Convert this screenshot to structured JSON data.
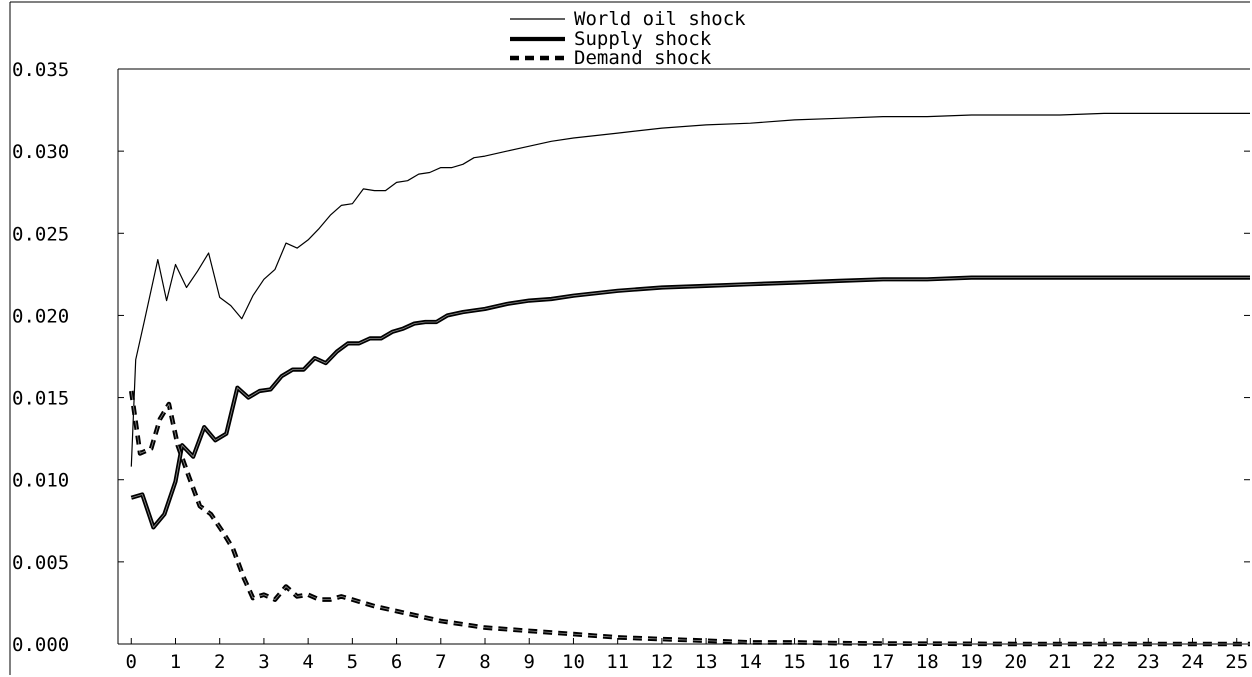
{
  "chart_data": {
    "type": "line",
    "title": "",
    "xlabel": "",
    "ylabel": "",
    "xlim": [
      -0.3,
      25.3
    ],
    "ylim": [
      0.0,
      0.035
    ],
    "x_ticks": [
      0,
      1,
      2,
      3,
      4,
      5,
      6,
      7,
      8,
      9,
      10,
      11,
      12,
      13,
      14,
      15,
      16,
      17,
      18,
      19,
      20,
      21,
      22,
      23,
      24,
      25
    ],
    "x_tick_labels": [
      "0",
      "1",
      "2",
      "3",
      "4",
      "5",
      "6",
      "7",
      "8",
      "9",
      "10",
      "11",
      "12",
      "13",
      "14",
      "15",
      "16",
      "17",
      "18",
      "19",
      "20",
      "21",
      "22",
      "23",
      "24",
      "25"
    ],
    "y_ticks": [
      0.0,
      0.005,
      0.01,
      0.015,
      0.02,
      0.025,
      0.03,
      0.035
    ],
    "y_tick_labels": [
      "0.000",
      "0.005",
      "0.010",
      "0.015",
      "0.020",
      "0.025",
      "0.030",
      "0.035"
    ],
    "grid": false,
    "legend_position": "top-center",
    "series": [
      {
        "name": "World oil shock",
        "style": "thin-solid",
        "color": "#000000",
        "points": [
          [
            0,
            0.0108
          ],
          [
            0.1,
            0.0173
          ],
          [
            0.3,
            0.0197
          ],
          [
            0.6,
            0.0234
          ],
          [
            0.8,
            0.0209
          ],
          [
            1.0,
            0.0231
          ],
          [
            1.25,
            0.0217
          ],
          [
            1.5,
            0.0227
          ],
          [
            1.75,
            0.0238
          ],
          [
            2.0,
            0.0211
          ],
          [
            2.25,
            0.0206
          ],
          [
            2.5,
            0.0198
          ],
          [
            2.75,
            0.0212
          ],
          [
            3.0,
            0.0222
          ],
          [
            3.25,
            0.0228
          ],
          [
            3.5,
            0.0244
          ],
          [
            3.75,
            0.0241
          ],
          [
            4.0,
            0.0246
          ],
          [
            4.25,
            0.0253
          ],
          [
            4.5,
            0.0261
          ],
          [
            4.75,
            0.0267
          ],
          [
            5.0,
            0.0268
          ],
          [
            5.25,
            0.0277
          ],
          [
            5.5,
            0.0276
          ],
          [
            5.75,
            0.0276
          ],
          [
            6.0,
            0.0281
          ],
          [
            6.25,
            0.0282
          ],
          [
            6.5,
            0.0286
          ],
          [
            6.75,
            0.0287
          ],
          [
            7.0,
            0.029
          ],
          [
            7.25,
            0.029
          ],
          [
            7.5,
            0.0292
          ],
          [
            7.75,
            0.0296
          ],
          [
            8.0,
            0.0297
          ],
          [
            8.5,
            0.03
          ],
          [
            9.0,
            0.0303
          ],
          [
            9.5,
            0.0306
          ],
          [
            10.0,
            0.0308
          ],
          [
            11.0,
            0.0311
          ],
          [
            12.0,
            0.0314
          ],
          [
            13.0,
            0.0316
          ],
          [
            14.0,
            0.0317
          ],
          [
            15.0,
            0.0319
          ],
          [
            16.0,
            0.032
          ],
          [
            17.0,
            0.0321
          ],
          [
            18.0,
            0.0321
          ],
          [
            19.0,
            0.0322
          ],
          [
            20.0,
            0.0322
          ],
          [
            21.0,
            0.0322
          ],
          [
            22.0,
            0.0323
          ],
          [
            23.0,
            0.0323
          ],
          [
            24.0,
            0.0323
          ],
          [
            25.3,
            0.0323
          ]
        ]
      },
      {
        "name": "Supply shock",
        "style": "thick-solid",
        "color": "#000000",
        "points": [
          [
            0,
            0.0089
          ],
          [
            0.25,
            0.0091
          ],
          [
            0.5,
            0.0071
          ],
          [
            0.75,
            0.0079
          ],
          [
            1.0,
            0.0099
          ],
          [
            1.15,
            0.0121
          ],
          [
            1.4,
            0.0114
          ],
          [
            1.65,
            0.0132
          ],
          [
            1.9,
            0.0124
          ],
          [
            2.15,
            0.0128
          ],
          [
            2.4,
            0.0156
          ],
          [
            2.65,
            0.015
          ],
          [
            2.9,
            0.0154
          ],
          [
            3.15,
            0.0155
          ],
          [
            3.4,
            0.0163
          ],
          [
            3.65,
            0.0167
          ],
          [
            3.9,
            0.0167
          ],
          [
            4.15,
            0.0174
          ],
          [
            4.4,
            0.0171
          ],
          [
            4.65,
            0.0178
          ],
          [
            4.9,
            0.0183
          ],
          [
            5.15,
            0.0183
          ],
          [
            5.4,
            0.0186
          ],
          [
            5.65,
            0.0186
          ],
          [
            5.9,
            0.019
          ],
          [
            6.15,
            0.0192
          ],
          [
            6.4,
            0.0195
          ],
          [
            6.65,
            0.0196
          ],
          [
            6.9,
            0.0196
          ],
          [
            7.15,
            0.02
          ],
          [
            7.5,
            0.0202
          ],
          [
            8.0,
            0.0204
          ],
          [
            8.5,
            0.0207
          ],
          [
            9.0,
            0.0209
          ],
          [
            9.5,
            0.021
          ],
          [
            10.0,
            0.0212
          ],
          [
            11.0,
            0.0215
          ],
          [
            12.0,
            0.0217
          ],
          [
            13.0,
            0.0218
          ],
          [
            14.0,
            0.0219
          ],
          [
            15.0,
            0.022
          ],
          [
            16.0,
            0.0221
          ],
          [
            17.0,
            0.0222
          ],
          [
            18.0,
            0.0222
          ],
          [
            19.0,
            0.0223
          ],
          [
            20.0,
            0.0223
          ],
          [
            21.0,
            0.0223
          ],
          [
            22.0,
            0.0223
          ],
          [
            23.0,
            0.0223
          ],
          [
            24.0,
            0.0223
          ],
          [
            25.3,
            0.0223
          ]
        ]
      },
      {
        "name": "Demand shock",
        "style": "thick-dashed",
        "color": "#000000",
        "points": [
          [
            0,
            0.0154
          ],
          [
            0.2,
            0.0116
          ],
          [
            0.45,
            0.0119
          ],
          [
            0.65,
            0.0137
          ],
          [
            0.85,
            0.0146
          ],
          [
            1.05,
            0.0121
          ],
          [
            1.3,
            0.0102
          ],
          [
            1.55,
            0.0084
          ],
          [
            1.8,
            0.0079
          ],
          [
            2.05,
            0.0069
          ],
          [
            2.3,
            0.0058
          ],
          [
            2.55,
            0.004
          ],
          [
            2.75,
            0.0028
          ],
          [
            3.0,
            0.003
          ],
          [
            3.25,
            0.0027
          ],
          [
            3.5,
            0.0035
          ],
          [
            3.75,
            0.0029
          ],
          [
            4.0,
            0.003
          ],
          [
            4.25,
            0.0027
          ],
          [
            4.5,
            0.0027
          ],
          [
            4.75,
            0.0029
          ],
          [
            5.0,
            0.0027
          ],
          [
            5.5,
            0.0023
          ],
          [
            6.0,
            0.002
          ],
          [
            6.5,
            0.0017
          ],
          [
            7.0,
            0.0014
          ],
          [
            7.5,
            0.0012
          ],
          [
            8.0,
            0.001
          ],
          [
            9.0,
            0.0008
          ],
          [
            10.0,
            0.0006
          ],
          [
            11.0,
            0.0004
          ],
          [
            12.0,
            0.0003
          ],
          [
            13.0,
            0.0002
          ],
          [
            14.0,
            0.0001
          ],
          [
            15.0,
            0.0001
          ],
          [
            16.0,
            5e-05
          ],
          [
            17.0,
            3e-05
          ],
          [
            18.0,
            2e-05
          ],
          [
            19.0,
            1e-05
          ],
          [
            20.0,
            0.0
          ],
          [
            22.0,
            0.0
          ],
          [
            25.3,
            0.0
          ]
        ]
      }
    ]
  }
}
